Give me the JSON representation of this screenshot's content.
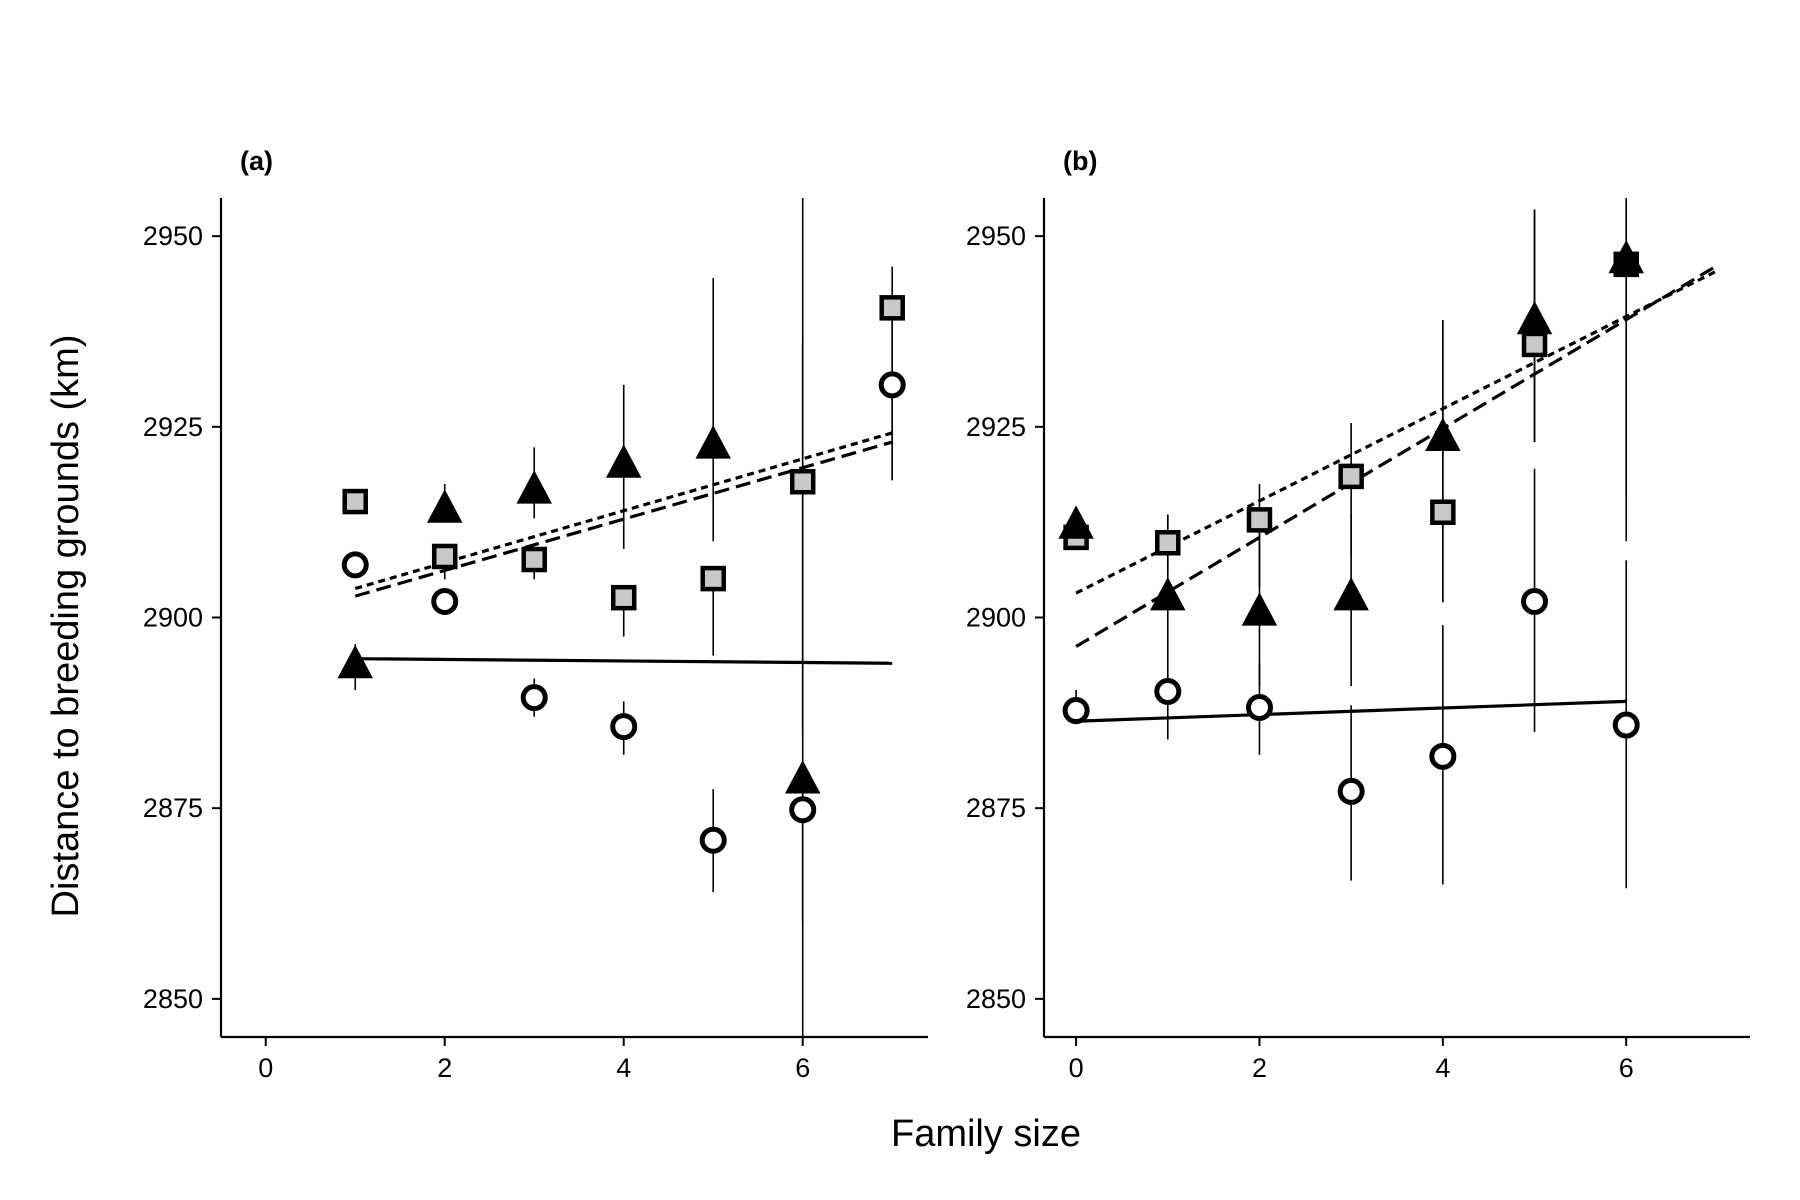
{
  "figure": {
    "xlabel": "Family size",
    "ylabel": "Distance to breeding grounds (km)"
  },
  "chart_data": [
    {
      "type": "scatter",
      "panel_label": "(a)",
      "xlabel": "Family size",
      "ylabel": "Distance to breeding grounds (km)",
      "xlim": [
        -0.5,
        7.4
      ],
      "ylim": [
        2845,
        2955
      ],
      "xticks": [
        0,
        2,
        4,
        6
      ],
      "yticks": [
        2850,
        2875,
        2900,
        2925,
        2950
      ],
      "grid": false,
      "series": [
        {
          "marker": "square",
          "fill": "#c8c8c8",
          "x": [
            1,
            2,
            3,
            4,
            5,
            6,
            7
          ],
          "y": [
            2915.2,
            2908.0,
            2907.6,
            2902.6,
            2905.1,
            2917.8,
            2940.6
          ],
          "err_low": [
            null,
            2905,
            2905,
            2897.5,
            2895,
            2885,
            2918
          ],
          "err_high": [
            null,
            null,
            null,
            null,
            null,
            2936,
            2946
          ],
          "fit": {
            "style": "dotted",
            "x": [
              1,
              7
            ],
            "y": [
              2903.8,
              2924.2
            ]
          }
        },
        {
          "marker": "triangle",
          "fill": "#000000",
          "x": [
            1,
            2,
            3,
            4,
            5,
            6
          ],
          "y": [
            2893.7,
            2914.1,
            2916.6,
            2920.0,
            2922.5,
            2878.6
          ],
          "err_low": [
            2890.5,
            2913,
            2913,
            2909,
            2910,
            2860
          ],
          "err_high": [
            2896.5,
            2917.5,
            2922.3,
            2930.5,
            2944.5,
            2955
          ],
          "fit": {
            "style": "dashed",
            "x": [
              1,
              7
            ],
            "y": [
              2902.8,
              2923.0
            ]
          }
        },
        {
          "marker": "circle",
          "fill": "#ffffff",
          "x": [
            1,
            2,
            3,
            4,
            5,
            6,
            7
          ],
          "y": [
            2906.9,
            2902.1,
            2889.5,
            2885.7,
            2870.8,
            2874.8,
            2930.5
          ],
          "err_low": [
            null,
            null,
            2887,
            2882,
            2864,
            2845,
            2918
          ],
          "err_high": [
            null,
            null,
            2892,
            2889,
            2877.5,
            2877,
            2940
          ],
          "fit": {
            "style": "solid",
            "x": [
              1,
              7
            ],
            "y": [
              2894.6,
              2894.0
            ]
          }
        }
      ]
    },
    {
      "type": "scatter",
      "panel_label": "(b)",
      "xlabel": "Family size",
      "ylabel": "Distance to breeding grounds (km)",
      "xlim": [
        -0.35,
        7.35
      ],
      "ylim": [
        2845,
        2955
      ],
      "xticks": [
        0,
        2,
        4,
        6
      ],
      "yticks": [
        2850,
        2875,
        2900,
        2925,
        2950
      ],
      "grid": false,
      "series": [
        {
          "marker": "square",
          "fill": "#c8c8c8",
          "x": [
            0,
            1,
            2,
            3,
            4,
            5,
            6
          ],
          "y": [
            2910.5,
            2909.8,
            2912.8,
            2918.5,
            2913.8,
            2935.8,
            2946.3
          ],
          "err_low": [
            null,
            2906,
            2904,
            2908,
            2902,
            2923,
            2916
          ],
          "err_high": [
            null,
            2913.5,
            2917.5,
            2925.5,
            2939,
            2953.5,
            2955
          ],
          "fit": {
            "style": "dotted",
            "x": [
              0,
              7
            ],
            "y": [
              2903.2,
              2945.5
            ]
          }
        },
        {
          "marker": "triangle",
          "fill": "#000000",
          "x": [
            0,
            1,
            2,
            3,
            4,
            5,
            6
          ],
          "y": [
            2912.0,
            2902.6,
            2900.6,
            2902.6,
            2923.5,
            2938.8,
            2946.8
          ],
          "err_low": [
            2909.5,
            2891,
            2891,
            2891,
            2902,
            2923,
            2910
          ],
          "err_high": [
            2913.5,
            2913.5,
            2913.5,
            2913.5,
            2939,
            2953.5,
            2955
          ],
          "fit": {
            "style": "dashed",
            "x": [
              0,
              7
            ],
            "y": [
              2896.2,
              2946.2
            ]
          }
        },
        {
          "marker": "circle",
          "fill": "#ffffff",
          "x": [
            0,
            1,
            2,
            3,
            4,
            5,
            6
          ],
          "y": [
            2887.8,
            2890.3,
            2888.2,
            2877.2,
            2881.8,
            2902.1,
            2885.9
          ],
          "err_low": [
            2886,
            2884,
            2882,
            2865.5,
            2865,
            2885,
            2864.5
          ],
          "err_high": [
            2890.5,
            2892.5,
            2894,
            2888.5,
            2899,
            2919.5,
            2907.5
          ],
          "fit": {
            "style": "solid",
            "x": [
              0,
              6
            ],
            "y": [
              2886.4,
              2889.0
            ]
          }
        }
      ]
    }
  ]
}
